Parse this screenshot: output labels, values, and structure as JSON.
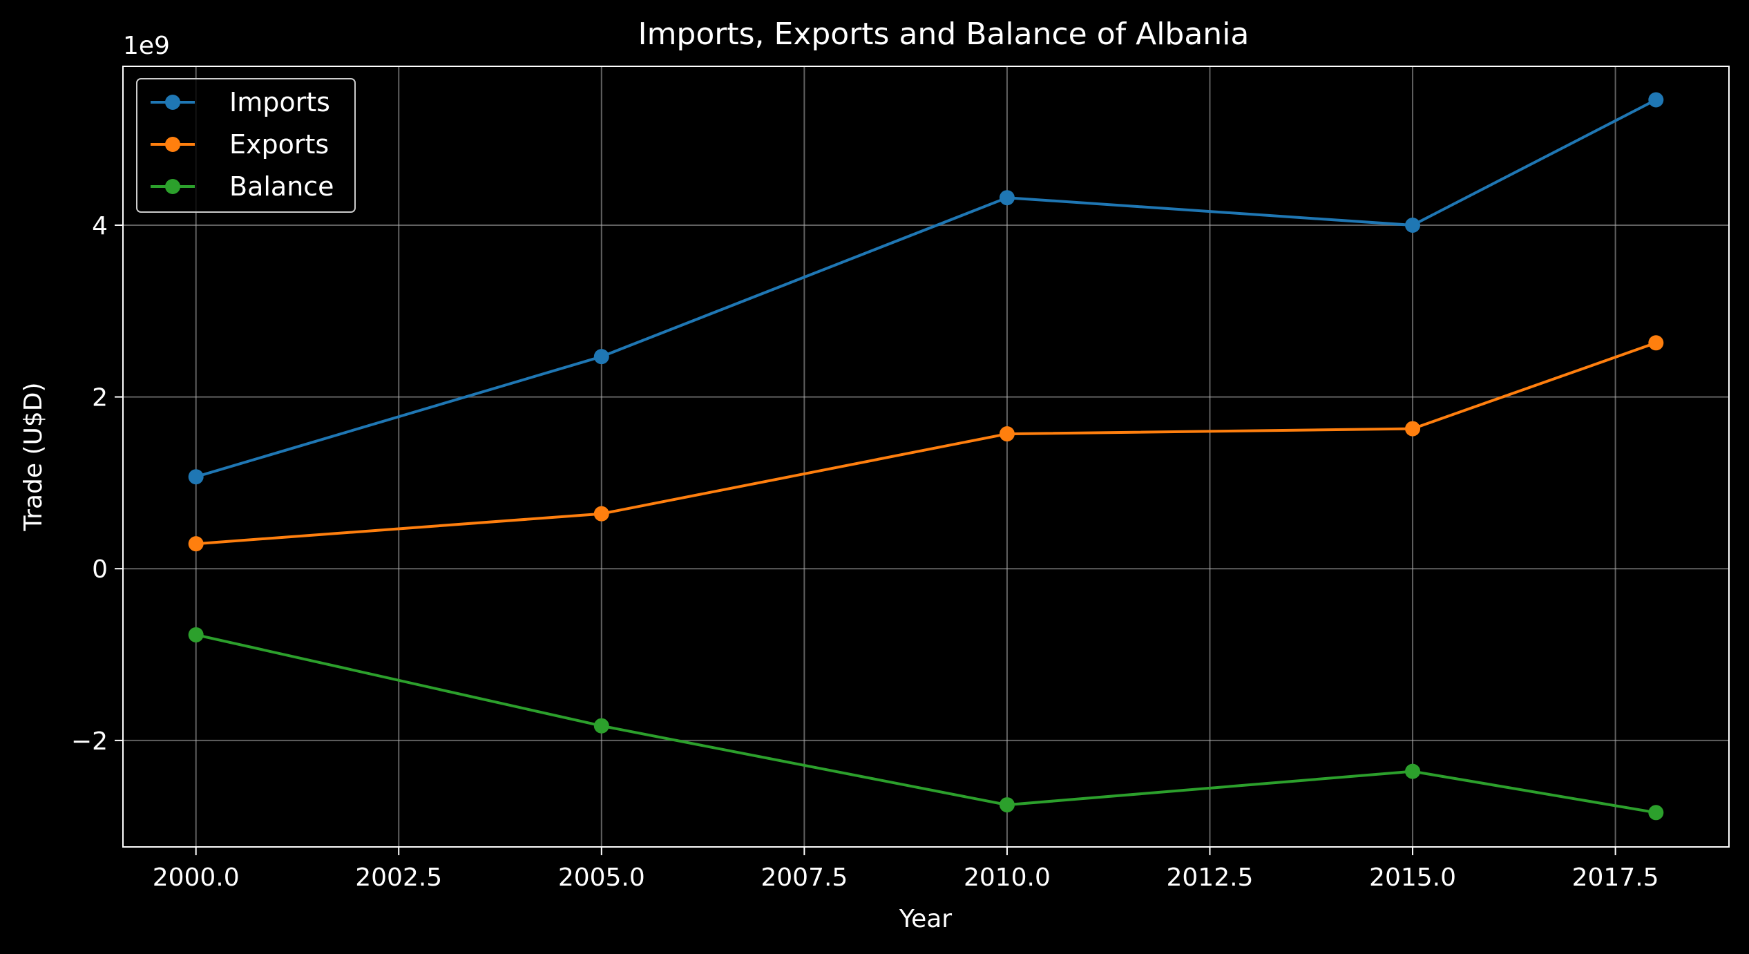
{
  "chart_data": {
    "type": "line",
    "title": "Imports, Exports and Balance of Albania",
    "xlabel": "Year",
    "ylabel": "Trade (U$D)",
    "y_offset_label": "1e9",
    "x": [
      2000,
      2005,
      2010,
      2015,
      2018
    ],
    "xlim": [
      1999.1,
      2018.9
    ],
    "ylim": [
      -3.24,
      5.85
    ],
    "x_ticks": [
      2000,
      2002.5,
      2005,
      2007.5,
      2010,
      2012.5,
      2015,
      2017.5
    ],
    "x_tick_labels": [
      "2000.0",
      "2002.5",
      "2005.0",
      "2007.5",
      "2010.0",
      "2012.5",
      "2015.0",
      "2017.5"
    ],
    "y_ticks": [
      -2,
      0,
      2,
      4
    ],
    "y_tick_labels": [
      "−2",
      "0",
      "2",
      "4"
    ],
    "grid": true,
    "legend_position": "top-left",
    "series": [
      {
        "name": "Imports",
        "color": "#1f77b4",
        "values": [
          1.07,
          2.47,
          4.32,
          4.0,
          5.46
        ]
      },
      {
        "name": "Exports",
        "color": "#ff7f0e",
        "values": [
          0.29,
          0.64,
          1.57,
          1.63,
          2.63
        ]
      },
      {
        "name": "Balance",
        "color": "#2ca02c",
        "values": [
          -0.77,
          -1.83,
          -2.75,
          -2.36,
          -2.84
        ]
      }
    ]
  }
}
